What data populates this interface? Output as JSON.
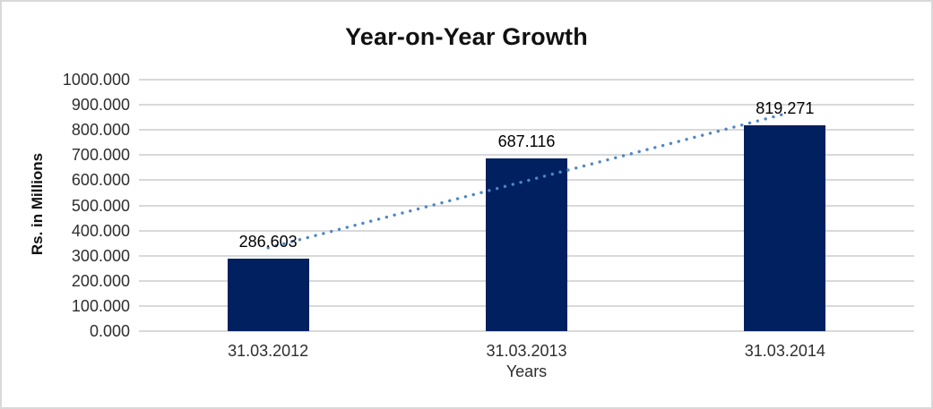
{
  "frame": {
    "background": "#ffffff",
    "border_color": "#d9d9d9"
  },
  "chart_data": {
    "type": "bar",
    "title": "Year-on-Year Growth",
    "xlabel": "Years",
    "ylabel": "Rs. in Millions",
    "categories": [
      "31.03.2012",
      "31.03.2013",
      "31.03.2014"
    ],
    "values": [
      286.603,
      687.116,
      819.271
    ],
    "data_labels": [
      "286.603",
      "687.116",
      "819.271"
    ],
    "ylim": [
      0,
      1000
    ],
    "ytick_step": 100,
    "ytick_labels_top_down": [
      "1000.000",
      "900.000",
      "800.000",
      "700.000",
      "600.000",
      "500.000",
      "400.000",
      "300.000",
      "200.000",
      "100.000",
      "0.000"
    ],
    "grid": true,
    "legend": false,
    "bar_color": "#002060",
    "gridline_color": "#d9d9d9",
    "trendline": {
      "type": "linear",
      "style": "dotted",
      "color": "#4f86c6"
    }
  }
}
